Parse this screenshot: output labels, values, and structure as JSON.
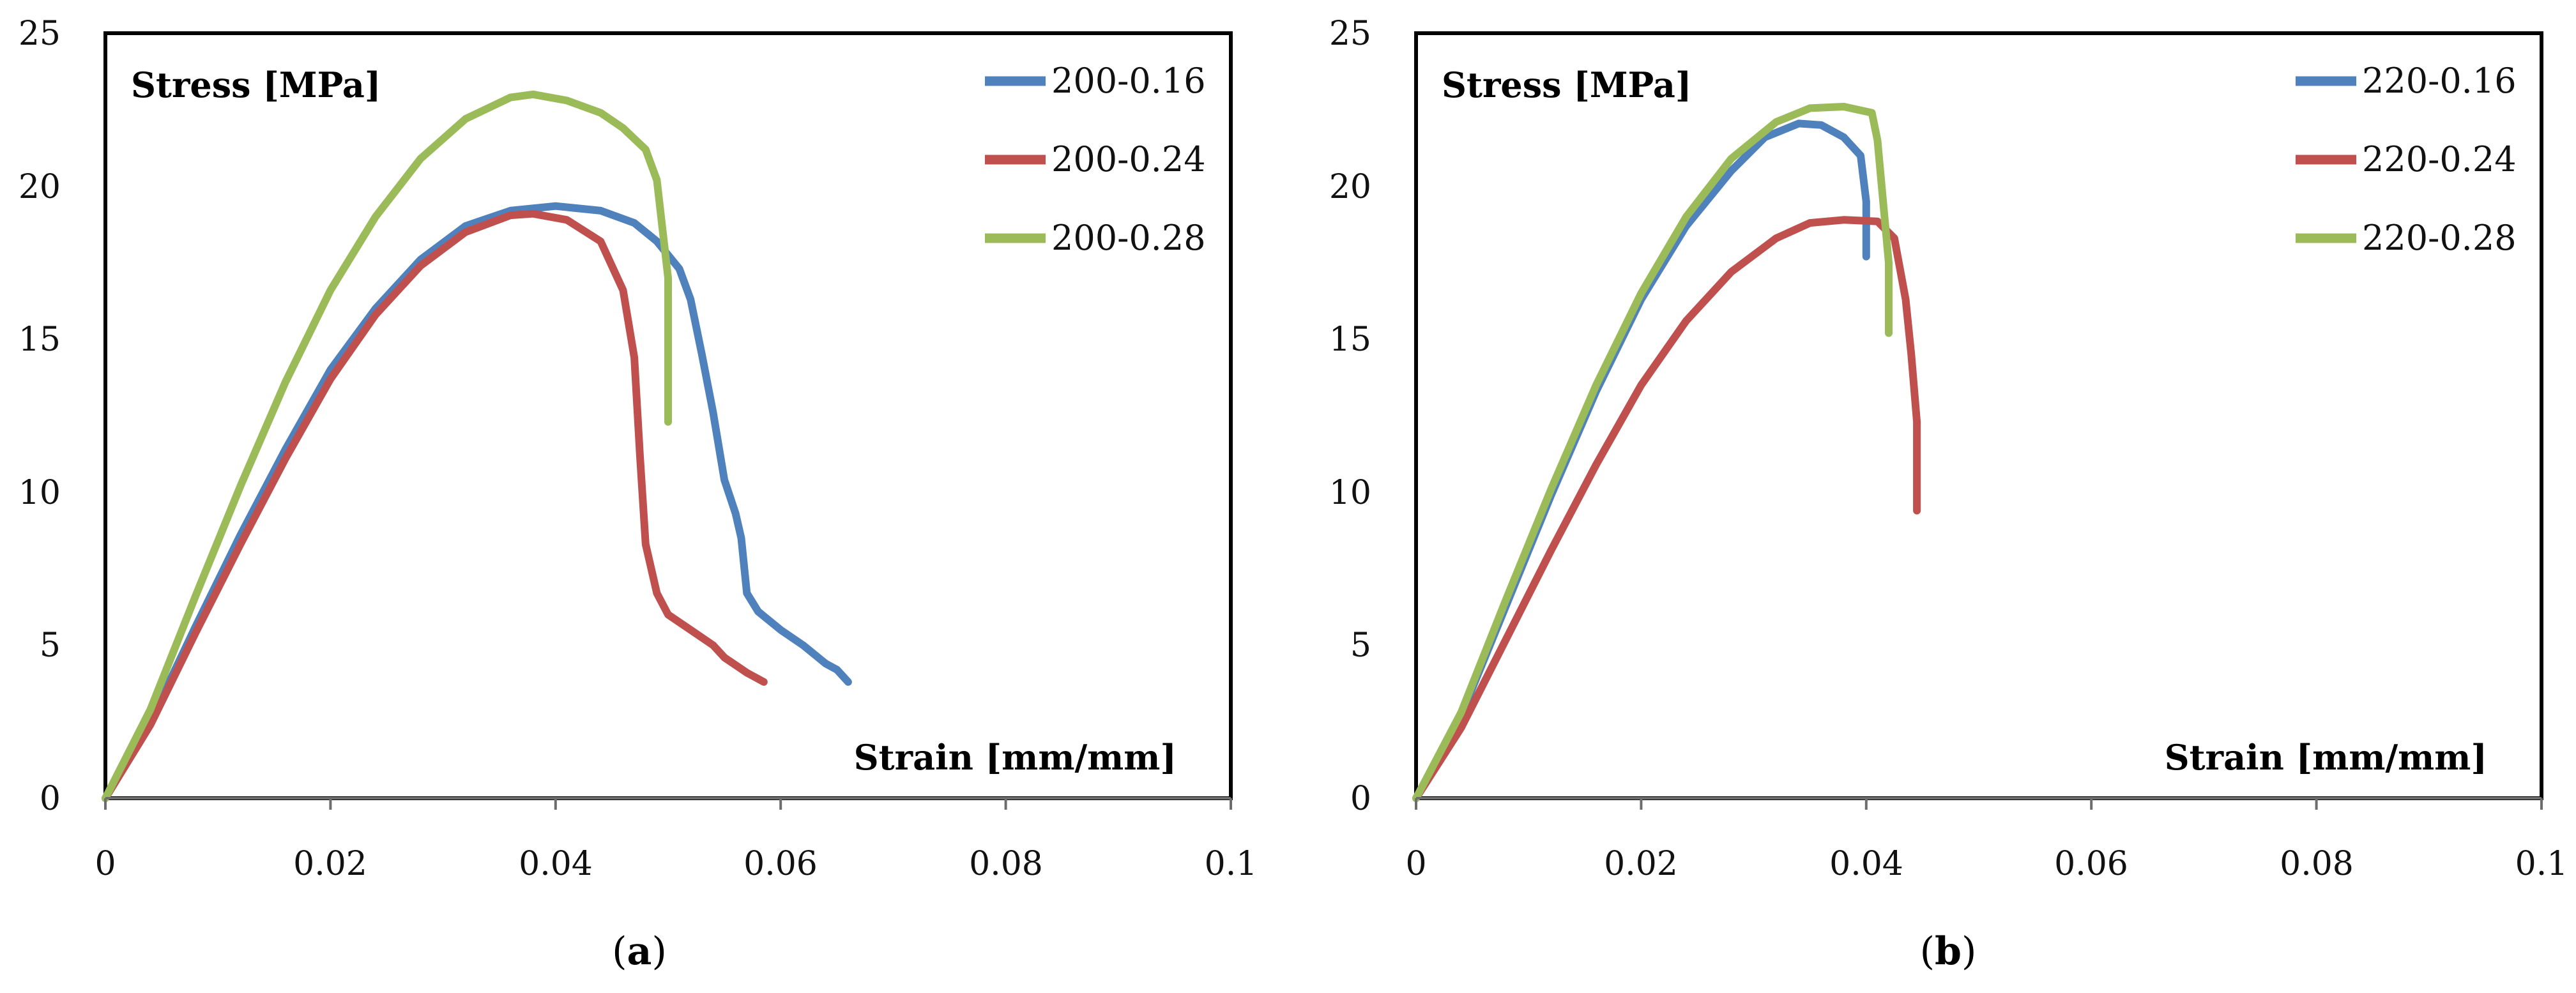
{
  "chart_data": [
    {
      "type": "line",
      "panel_label": "a",
      "ylabel": "Stress [MPa]",
      "xlabel": "Strain [mm/mm]",
      "xlim": [
        0,
        0.1
      ],
      "ylim": [
        0,
        25
      ],
      "x_ticks": [
        "0",
        "0.02",
        "0.04",
        "0.06",
        "0.08",
        "0.1"
      ],
      "y_ticks": [
        "0",
        "5",
        "10",
        "15",
        "20",
        "25"
      ],
      "x_tick_values": [
        0,
        0.02,
        0.04,
        0.06,
        0.08,
        0.1
      ],
      "y_tick_values": [
        0,
        5,
        10,
        15,
        20,
        25
      ],
      "grid": false,
      "legend_position": "top-right",
      "series": [
        {
          "name": "200-0.16",
          "color": "#4F81BD",
          "points": [
            [
              0,
              0
            ],
            [
              0.004,
              2.5
            ],
            [
              0.008,
              5.6
            ],
            [
              0.012,
              8.6
            ],
            [
              0.016,
              11.4
            ],
            [
              0.02,
              14.0
            ],
            [
              0.024,
              16.0
            ],
            [
              0.028,
              17.6
            ],
            [
              0.032,
              18.7
            ],
            [
              0.036,
              19.2
            ],
            [
              0.04,
              19.35
            ],
            [
              0.044,
              19.2
            ],
            [
              0.047,
              18.8
            ],
            [
              0.049,
              18.2
            ],
            [
              0.051,
              17.3
            ],
            [
              0.052,
              16.3
            ],
            [
              0.053,
              14.5
            ],
            [
              0.054,
              12.6
            ],
            [
              0.055,
              10.4
            ],
            [
              0.056,
              9.3
            ],
            [
              0.0565,
              8.5
            ],
            [
              0.057,
              6.7
            ],
            [
              0.058,
              6.1
            ],
            [
              0.06,
              5.5
            ],
            [
              0.062,
              5.0
            ],
            [
              0.064,
              4.4
            ],
            [
              0.065,
              4.2
            ],
            [
              0.066,
              3.8
            ]
          ]
        },
        {
          "name": "200-0.24",
          "color": "#C0504D",
          "points": [
            [
              0,
              0
            ],
            [
              0.004,
              2.4
            ],
            [
              0.008,
              5.4
            ],
            [
              0.012,
              8.3
            ],
            [
              0.016,
              11.1
            ],
            [
              0.02,
              13.7
            ],
            [
              0.024,
              15.8
            ],
            [
              0.028,
              17.4
            ],
            [
              0.032,
              18.5
            ],
            [
              0.036,
              19.05
            ],
            [
              0.038,
              19.1
            ],
            [
              0.041,
              18.9
            ],
            [
              0.044,
              18.2
            ],
            [
              0.046,
              16.6
            ],
            [
              0.047,
              14.4
            ],
            [
              0.0475,
              11.2
            ],
            [
              0.048,
              8.3
            ],
            [
              0.049,
              6.7
            ],
            [
              0.05,
              6.0
            ],
            [
              0.052,
              5.5
            ],
            [
              0.054,
              5.0
            ],
            [
              0.055,
              4.6
            ],
            [
              0.057,
              4.1
            ],
            [
              0.0585,
              3.8
            ]
          ]
        },
        {
          "name": "200-0.28",
          "color": "#9BBB59",
          "points": [
            [
              0,
              0
            ],
            [
              0.004,
              2.9
            ],
            [
              0.008,
              6.6
            ],
            [
              0.012,
              10.2
            ],
            [
              0.016,
              13.6
            ],
            [
              0.02,
              16.6
            ],
            [
              0.024,
              19.0
            ],
            [
              0.028,
              20.9
            ],
            [
              0.032,
              22.2
            ],
            [
              0.036,
              22.9
            ],
            [
              0.038,
              23.0
            ],
            [
              0.041,
              22.8
            ],
            [
              0.044,
              22.4
            ],
            [
              0.046,
              21.9
            ],
            [
              0.048,
              21.2
            ],
            [
              0.049,
              20.2
            ],
            [
              0.0495,
              18.6
            ],
            [
              0.05,
              17.0
            ],
            [
              0.05,
              12.3
            ]
          ]
        }
      ]
    },
    {
      "type": "line",
      "panel_label": "b",
      "ylabel": "Stress [MPa]",
      "xlabel": "Strain [mm/mm]",
      "xlim": [
        0,
        0.1
      ],
      "ylim": [
        0,
        25
      ],
      "x_ticks": [
        "0",
        "0.02",
        "0.04",
        "0.06",
        "0.08",
        "0.1"
      ],
      "y_ticks": [
        "0",
        "5",
        "10",
        "15",
        "20",
        "25"
      ],
      "x_tick_values": [
        0,
        0.02,
        0.04,
        0.06,
        0.08,
        0.1
      ],
      "y_tick_values": [
        0,
        5,
        10,
        15,
        20,
        25
      ],
      "grid": false,
      "legend_position": "top-right",
      "series": [
        {
          "name": "220-0.16",
          "color": "#4F81BD",
          "points": [
            [
              0,
              0
            ],
            [
              0.004,
              2.7
            ],
            [
              0.008,
              6.3
            ],
            [
              0.012,
              9.9
            ],
            [
              0.016,
              13.3
            ],
            [
              0.02,
              16.3
            ],
            [
              0.024,
              18.7
            ],
            [
              0.028,
              20.5
            ],
            [
              0.031,
              21.6
            ],
            [
              0.034,
              22.05
            ],
            [
              0.036,
              22.0
            ],
            [
              0.038,
              21.6
            ],
            [
              0.0395,
              21.0
            ],
            [
              0.04,
              19.5
            ],
            [
              0.04,
              17.7
            ]
          ]
        },
        {
          "name": "220-0.24",
          "color": "#C0504D",
          "points": [
            [
              0,
              0
            ],
            [
              0.004,
              2.3
            ],
            [
              0.008,
              5.2
            ],
            [
              0.012,
              8.1
            ],
            [
              0.016,
              10.9
            ],
            [
              0.02,
              13.5
            ],
            [
              0.024,
              15.6
            ],
            [
              0.028,
              17.2
            ],
            [
              0.032,
              18.3
            ],
            [
              0.035,
              18.8
            ],
            [
              0.038,
              18.9
            ],
            [
              0.041,
              18.85
            ],
            [
              0.0425,
              18.3
            ],
            [
              0.0435,
              16.3
            ],
            [
              0.044,
              14.5
            ],
            [
              0.0445,
              12.3
            ],
            [
              0.0445,
              9.4
            ]
          ]
        },
        {
          "name": "220-0.28",
          "color": "#9BBB59",
          "points": [
            [
              0,
              0
            ],
            [
              0.004,
              2.8
            ],
            [
              0.008,
              6.5
            ],
            [
              0.012,
              10.1
            ],
            [
              0.016,
              13.5
            ],
            [
              0.02,
              16.5
            ],
            [
              0.024,
              19.0
            ],
            [
              0.028,
              20.9
            ],
            [
              0.032,
              22.1
            ],
            [
              0.035,
              22.55
            ],
            [
              0.038,
              22.6
            ],
            [
              0.0405,
              22.4
            ],
            [
              0.041,
              21.5
            ],
            [
              0.0415,
              19.5
            ],
            [
              0.042,
              17.5
            ],
            [
              0.042,
              15.2
            ]
          ]
        }
      ]
    }
  ]
}
